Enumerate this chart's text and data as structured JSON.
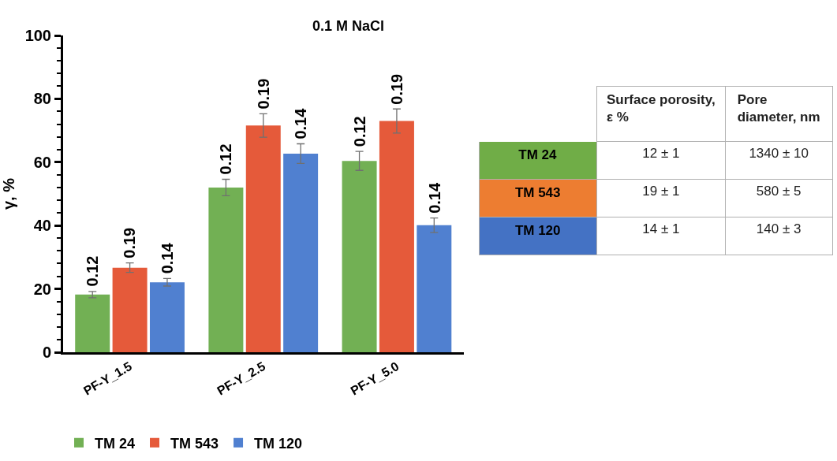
{
  "chart_data": [
    {
      "type": "bar",
      "title": "0.1 M NaCl",
      "ylabel": "γ, %",
      "categories": [
        "PF-Y_1.5",
        "PF-Y_2.5",
        "PF-Y_5.0"
      ],
      "series": [
        {
          "name": "TM 24",
          "color": "#72b054",
          "values": [
            18.2,
            52.0,
            60.4
          ],
          "errors": [
            1.0,
            2.6,
            3.0
          ]
        },
        {
          "name": "TM 543",
          "color": "#e55a3a",
          "values": [
            26.7,
            71.6,
            73.0
          ],
          "errors": [
            1.5,
            3.7,
            3.8
          ]
        },
        {
          "name": "TM 120",
          "color": "#5080d0",
          "values": [
            22.1,
            62.7,
            40.1
          ],
          "errors": [
            1.2,
            3.1,
            2.3
          ]
        }
      ],
      "annotations": [
        "0.12",
        "0.19",
        "0.14",
        "0.12",
        "0.19",
        "0.14",
        "0.12",
        "0.19",
        "0.14"
      ],
      "ylim": [
        0,
        100
      ],
      "yticks": [
        0,
        20,
        40,
        60,
        80,
        100
      ],
      "legend": "bottom"
    },
    {
      "type": "other",
      "categories": [
        "TM 24",
        "TM 543",
        "TM 120"
      ],
      "colors": [
        "#70ad47",
        "#ed7d31",
        "#4472c4"
      ],
      "annotations": [
        "Surface porosity, ε %",
        "Pore diameter, nm"
      ],
      "cell_labels": [
        [
          "12 ± 1",
          "1340 ± 10"
        ],
        [
          "19 ± 1",
          "580 ± 5"
        ],
        [
          "14 ± 1",
          "140 ± 3"
        ]
      ]
    }
  ]
}
